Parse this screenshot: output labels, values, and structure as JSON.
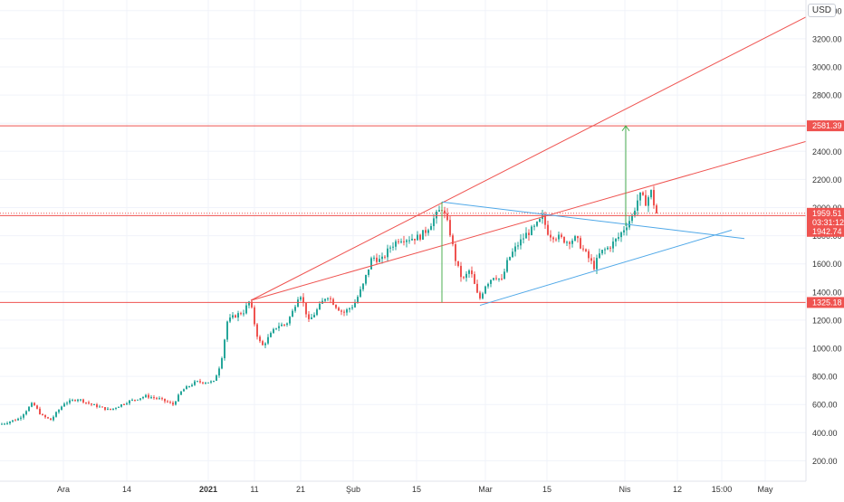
{
  "chart_data": {
    "type": "candlestick",
    "currency": "USD",
    "x_tick_labels": [
      "Ara",
      "14",
      "2021",
      "11",
      "21",
      "Şub",
      "15",
      "Mar",
      "15",
      "Nis",
      "12",
      "15:00",
      "May"
    ],
    "y_ticks": [
      200,
      400,
      600,
      800,
      1000,
      1200,
      1400,
      1600,
      1800,
      2000,
      2200,
      2400,
      2600,
      2800,
      3000,
      3200,
      3400
    ],
    "y_tick_labels": [
      "200.00",
      "400.00",
      "600.00",
      "800.00",
      "1000.00",
      "1200.00",
      "1400.00",
      "1600.00",
      "1800.00",
      "2000.00",
      "2200.00",
      "2400.00",
      "2600.00",
      "2800.00",
      "3000.00",
      "3200.00",
      "3400.00"
    ],
    "ylim": [
      80,
      3480
    ],
    "horizontal_levels": [
      {
        "value": 2581.39,
        "label": "2581.39",
        "color": "#ef5350"
      },
      {
        "value": 1942.74,
        "label": "1942.74",
        "color": "#ef5350"
      },
      {
        "value": 1325.18,
        "label": "1325.18",
        "color": "#ef5350"
      }
    ],
    "current_price": {
      "value": 1959.51,
      "label": "1959.51",
      "countdown": "03:31:12",
      "color": "#ef5350"
    },
    "colors": {
      "up": "#26a69a",
      "down": "#ef5350",
      "trend_red": "#ef5350",
      "trend_blue": "#4fa8e8",
      "measure_green": "#4caf50",
      "grid": "#f0f3fa",
      "axis_text": "#333333"
    }
  }
}
